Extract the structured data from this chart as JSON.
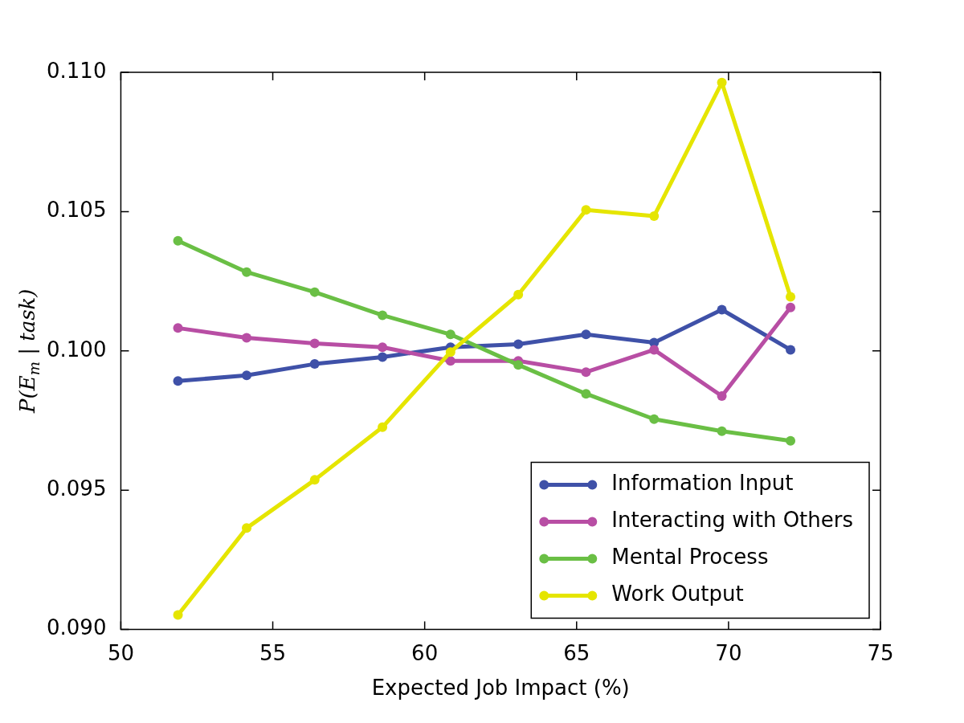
{
  "chart_data": {
    "type": "line",
    "xlabel": "Expected Job Impact (%)",
    "ylabel": "P(E$_{m}$ | task)",
    "x": [
      51.88,
      54.14,
      56.38,
      58.61,
      60.85,
      63.08,
      65.31,
      67.55,
      69.78,
      72.04
    ],
    "series": [
      {
        "name": "Information Input",
        "color": "#3f51a8",
        "values": [
          0.09892,
          0.09912,
          0.09953,
          0.09978,
          0.10013,
          0.10024,
          0.10059,
          0.1003,
          0.10148,
          0.10004
        ]
      },
      {
        "name": "Interacting with Others",
        "color": "#b84ea4",
        "values": [
          0.10082,
          0.10047,
          0.10027,
          0.10013,
          0.09964,
          0.09964,
          0.09924,
          0.10004,
          0.09838,
          0.10156
        ]
      },
      {
        "name": "Mental Process",
        "color": "#6abf45",
        "values": [
          0.10395,
          0.10283,
          0.10211,
          0.10128,
          0.10059,
          0.0995,
          0.09846,
          0.09755,
          0.09712,
          0.09677
        ]
      },
      {
        "name": "Work Output",
        "color": "#e5e500",
        "values": [
          0.09052,
          0.09364,
          0.09537,
          0.09726,
          0.09996,
          0.10202,
          0.10506,
          0.10484,
          0.10963,
          0.10194
        ]
      }
    ],
    "xlim": [
      50,
      75
    ],
    "xticks": [
      50,
      55,
      60,
      65,
      70,
      75
    ],
    "ylim": [
      0.09,
      0.11
    ],
    "yticks": [
      {
        "value": 0.09,
        "label": "0.090"
      },
      {
        "value": 0.095,
        "label": "0.095"
      },
      {
        "value": 0.1,
        "label": "0.100"
      },
      {
        "value": 0.105,
        "label": "0.105"
      },
      {
        "value": 0.11,
        "label": "0.110"
      }
    ],
    "legend": "bottom right",
    "marker": "circle",
    "line_style": "solid",
    "grid": false
  }
}
